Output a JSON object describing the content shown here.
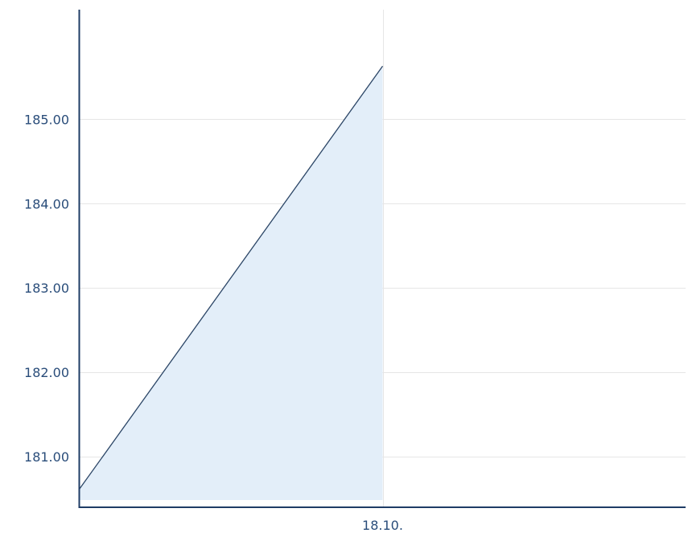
{
  "chart_data": {
    "type": "area",
    "title": "",
    "xlabel": "",
    "ylabel": "",
    "x_tick_labels": [
      "18.10."
    ],
    "y_tick_labels": [
      "181.00",
      "182.00",
      "183.00",
      "184.00",
      "185.00"
    ],
    "y_ticks": [
      181,
      182,
      183,
      184,
      185
    ],
    "ylim": [
      180.4,
      186.3
    ],
    "xlim": [
      0,
      2
    ],
    "grid": true,
    "legend": "none",
    "series": [
      {
        "x": [
          0,
          1
        ],
        "values": [
          180.62,
          185.63
        ]
      }
    ],
    "colors": {
      "line": "#2b4566",
      "fill": "#e3eef9",
      "axis": "#1f3c66",
      "grid": "#e6e6e6",
      "text": "#2a4d7a"
    }
  }
}
